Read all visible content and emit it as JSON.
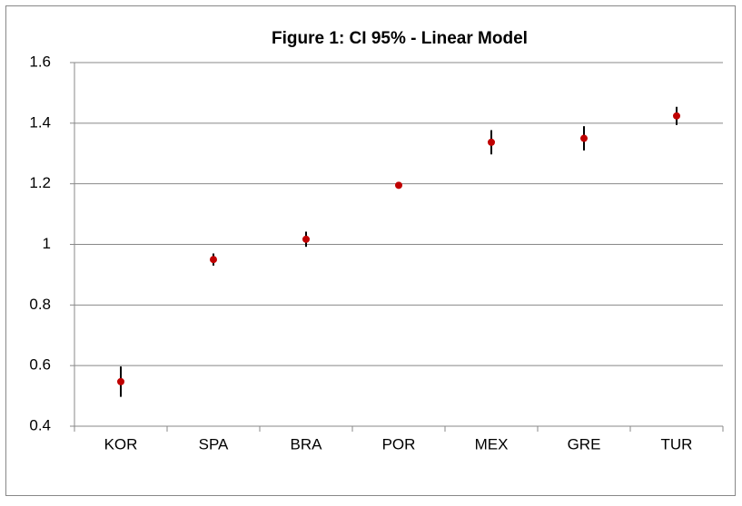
{
  "chart_data": {
    "type": "errorbar",
    "title": "Figure 1: CI 95% - Linear Model",
    "categories": [
      "KOR",
      "SPA",
      "BRA",
      "POR",
      "MEX",
      "GRE",
      "TUR"
    ],
    "series": [
      {
        "color": "#c00000",
        "error_color": "#000000",
        "values": [
          0.547,
          0.95,
          1.017,
          1.195,
          1.337,
          1.35,
          1.424
        ],
        "errors": [
          0.05,
          0.02,
          0.025,
          0.01,
          0.04,
          0.04,
          0.03
        ]
      }
    ],
    "ylim": [
      0.4,
      1.6
    ],
    "yticks": [
      0.4,
      0.6,
      0.8,
      1,
      1.2,
      1.4,
      1.6
    ],
    "grid": true
  }
}
